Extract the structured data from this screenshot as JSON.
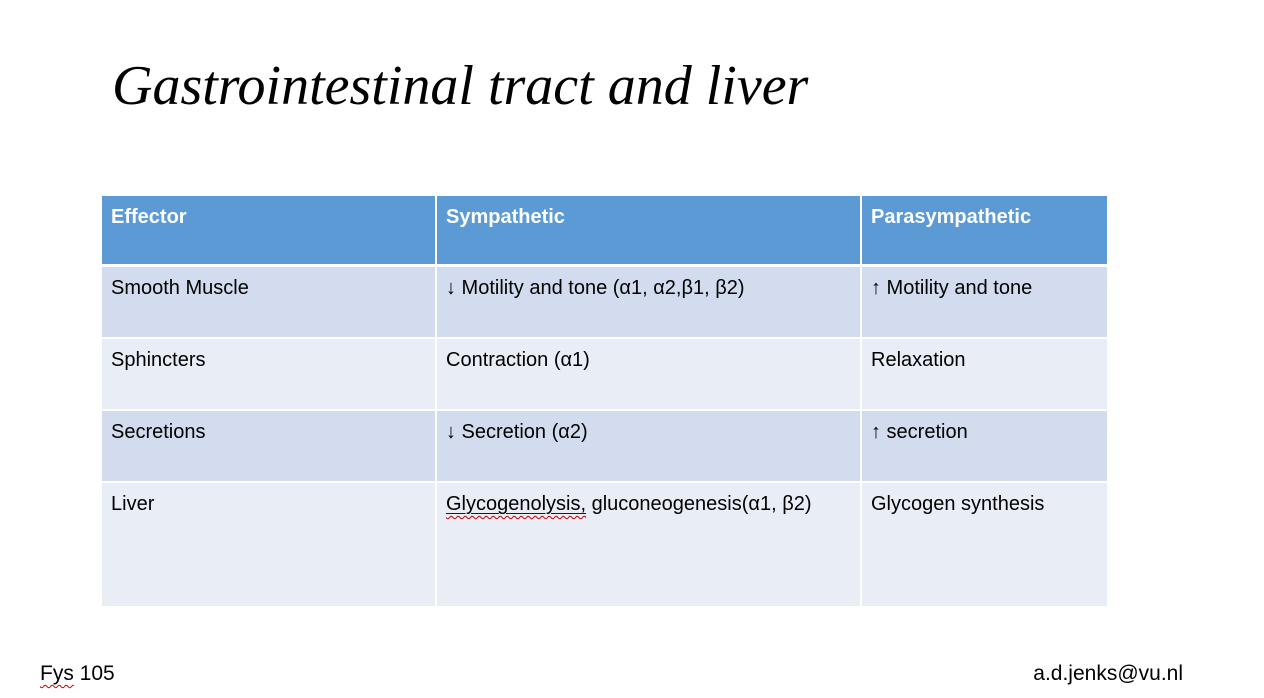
{
  "colors": {
    "slide_bg": "#FFFFFF",
    "header_bg": "#5B9AD5",
    "header_text": "#FFFFFF",
    "row_band_dark": "#D2DCEE",
    "row_band_light": "#E9EDF6",
    "divider": "#FFFFFF",
    "body_text": "#000000",
    "spellcheck": "#C00000"
  },
  "slide": {
    "title": "Gastrointestinal tract and liver",
    "footer_left": {
      "flagged": "Fys",
      "rest": " 105"
    },
    "footer_right": "a.d.jenks@vu.nl"
  },
  "table": {
    "headers": {
      "effector": "Effector",
      "sympathetic": "Sympathetic",
      "parasympathetic": "Parasympathetic"
    },
    "rows": [
      {
        "effector": "Smooth Muscle",
        "sympathetic": "↓ Motility and tone (α1, α2,β1, β2)",
        "parasympathetic": "↑ Motility and tone"
      },
      {
        "effector": "Sphincters",
        "sympathetic": "Contraction (α1)",
        "parasympathetic": "Relaxation"
      },
      {
        "effector": "Secretions",
        "sympathetic": "↓ Secretion (α2)",
        "parasympathetic": "↑ secretion"
      },
      {
        "effector": "Liver",
        "sympathetic_flagged": "Glycogenolysis,",
        "sympathetic_rest": " gluconeogenesis(α1, β2)",
        "parasympathetic": "Glycogen synthesis"
      }
    ]
  }
}
